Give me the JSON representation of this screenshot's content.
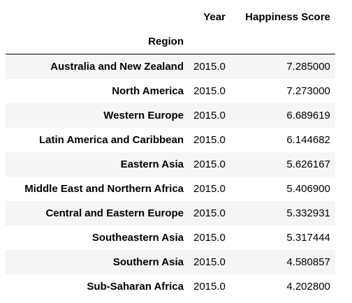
{
  "table": {
    "columns": [
      "Year",
      "Happiness Score"
    ],
    "index_name": "Region",
    "rows": [
      {
        "region": "Australia and New Zealand",
        "year": "2015.0",
        "score": "7.285000"
      },
      {
        "region": "North America",
        "year": "2015.0",
        "score": "7.273000"
      },
      {
        "region": "Western Europe",
        "year": "2015.0",
        "score": "6.689619"
      },
      {
        "region": "Latin America and Caribbean",
        "year": "2015.0",
        "score": "6.144682"
      },
      {
        "region": "Eastern Asia",
        "year": "2015.0",
        "score": "5.626167"
      },
      {
        "region": "Middle East and Northern Africa",
        "year": "2015.0",
        "score": "5.406900"
      },
      {
        "region": "Central and Eastern Europe",
        "year": "2015.0",
        "score": "5.332931"
      },
      {
        "region": "Southeastern Asia",
        "year": "2015.0",
        "score": "5.317444"
      },
      {
        "region": "Southern Asia",
        "year": "2015.0",
        "score": "4.580857"
      },
      {
        "region": "Sub-Saharan Africa",
        "year": "2015.0",
        "score": "4.202800"
      }
    ]
  }
}
